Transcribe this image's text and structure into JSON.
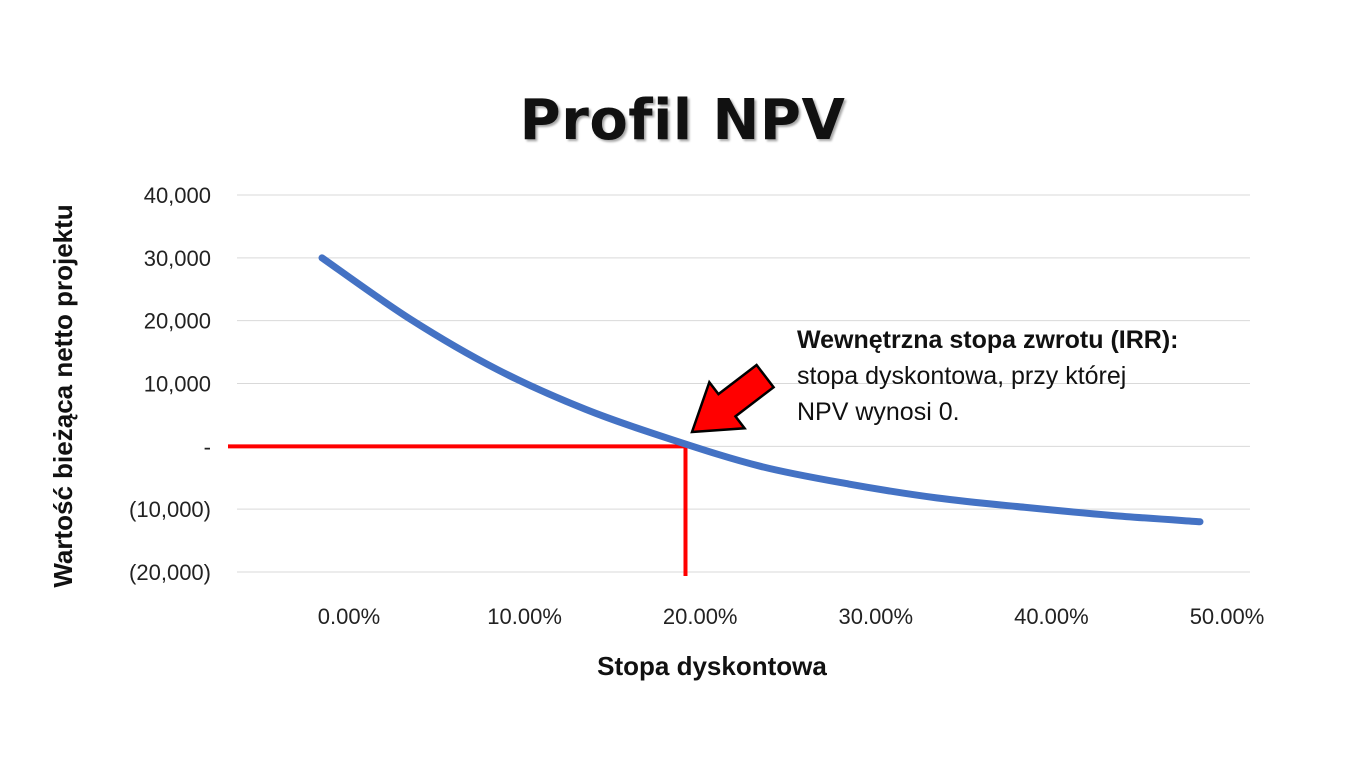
{
  "chart_data": {
    "type": "line",
    "title": "Profil NPV",
    "xlabel": "Stopa dyskontowa",
    "ylabel": "Wartość bieżąca netto projektu",
    "x_tick_labels": [
      "0.00%",
      "10.00%",
      "20.00%",
      "30.00%",
      "40.00%",
      "50.00%"
    ],
    "y_tick_labels": [
      "40,000",
      "30,000",
      "20,000",
      "10,000",
      "-",
      "(10,000)",
      "(20,000)"
    ],
    "ylim": [
      -20000,
      40000
    ],
    "grid": true,
    "series": [
      {
        "x": [
          0,
          0.05,
          0.1,
          0.15,
          0.2,
          0.25,
          0.3,
          0.35,
          0.4,
          0.45,
          0.5
        ],
        "y": [
          30000,
          20300,
          12200,
          5900,
          1000,
          -3200,
          -6000,
          -8200,
          -9700,
          -11000,
          -12000
        ]
      }
    ],
    "irr_marker": {
      "x": 0.207,
      "y": 0
    },
    "annotation": {
      "title": "Wewnętrzna stopa zwrotu (IRR):",
      "line1": "stopa dyskontowa, przy której",
      "line2": "NPV wynosi 0."
    },
    "colors": {
      "line": "#4472C4",
      "marker": "#FF0000",
      "grid": "#D9D9D9"
    }
  }
}
